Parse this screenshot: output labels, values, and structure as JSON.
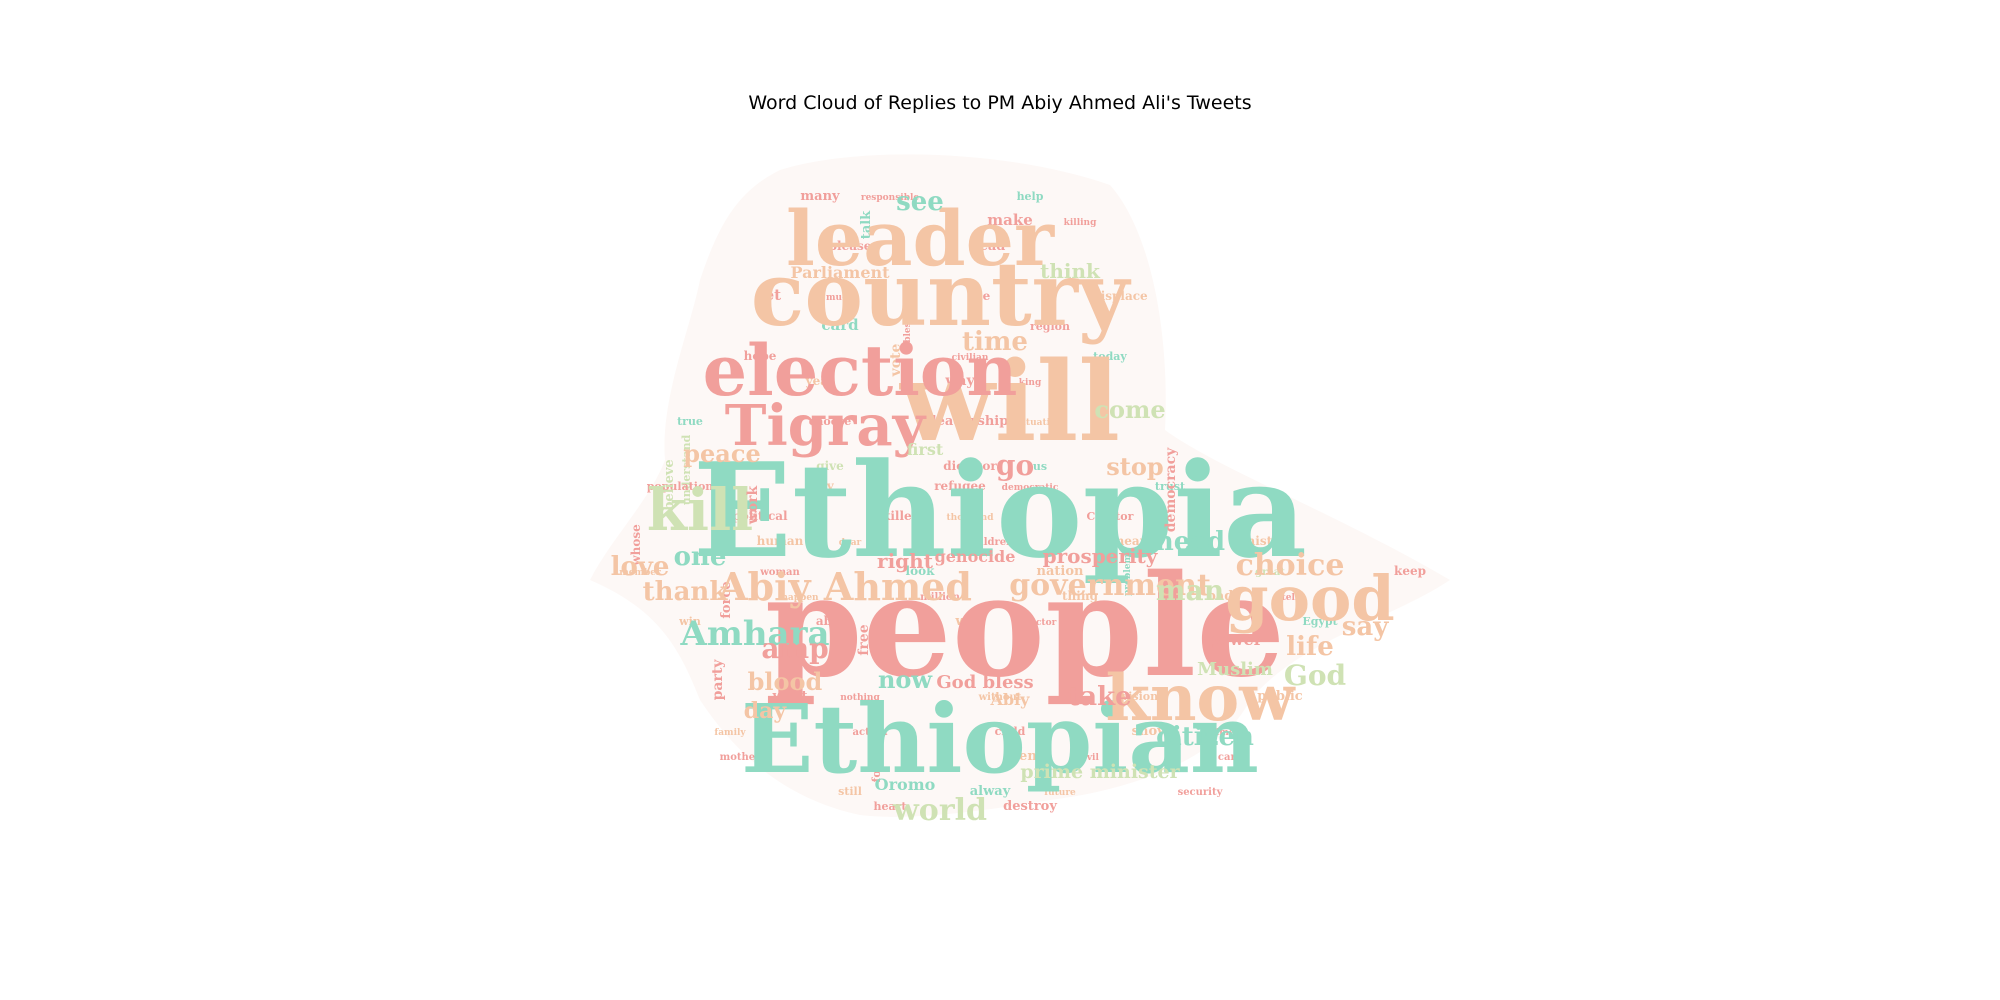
{
  "chart_data": {
    "type": "wordcloud",
    "title": "Word Cloud of Replies to PM Abiy Ahmed Ali's Tweets",
    "palette": {
      "mint": "#8fdac2",
      "peach": "#f4c5a5",
      "pink": "#f19f9b",
      "sage": "#cfe2b4",
      "shape_bg": "#fdf8f6"
    },
    "words": [
      {
        "text": "Ethiopia",
        "weight": 100,
        "color": "mint"
      },
      {
        "text": "people",
        "weight": 98,
        "color": "pink"
      },
      {
        "text": "Ethiopian",
        "weight": 78,
        "color": "mint"
      },
      {
        "text": "will",
        "weight": 72,
        "color": "peach"
      },
      {
        "text": "country",
        "weight": 68,
        "color": "peach"
      },
      {
        "text": "leader",
        "weight": 62,
        "color": "peach"
      },
      {
        "text": "election",
        "weight": 60,
        "color": "pink"
      },
      {
        "text": "know",
        "weight": 52,
        "color": "peach"
      },
      {
        "text": "good",
        "weight": 50,
        "color": "peach"
      },
      {
        "text": "Tigray",
        "weight": 46,
        "color": "pink"
      },
      {
        "text": "kill",
        "weight": 44,
        "color": "sage"
      },
      {
        "text": "Abiy Ahmed",
        "weight": 34,
        "color": "peach"
      },
      {
        "text": "Amhara",
        "weight": 30,
        "color": "mint"
      },
      {
        "text": "government",
        "weight": 26,
        "color": "peach"
      },
      {
        "text": "choice",
        "weight": 26,
        "color": "peach"
      },
      {
        "text": "world",
        "weight": 24,
        "color": "sage"
      },
      {
        "text": "citizen",
        "weight": 22,
        "color": "mint"
      },
      {
        "text": "God",
        "weight": 22,
        "color": "sage"
      },
      {
        "text": "need",
        "weight": 22,
        "color": "mint"
      },
      {
        "text": "man",
        "weight": 22,
        "color": "sage"
      },
      {
        "text": "time",
        "weight": 22,
        "color": "peach"
      },
      {
        "text": "peace",
        "weight": 20,
        "color": "peach"
      },
      {
        "text": "come",
        "weight": 20,
        "color": "sage"
      },
      {
        "text": "love",
        "weight": 20,
        "color": "peach"
      },
      {
        "text": "thank",
        "weight": 20,
        "color": "peach"
      },
      {
        "text": "one",
        "weight": 20,
        "color": "mint"
      },
      {
        "text": "blood",
        "weight": 20,
        "color": "peach"
      },
      {
        "text": "amp",
        "weight": 22,
        "color": "pink"
      },
      {
        "text": "take",
        "weight": 22,
        "color": "pink"
      },
      {
        "text": "life",
        "weight": 22,
        "color": "peach"
      },
      {
        "text": "say",
        "weight": 22,
        "color": "peach"
      },
      {
        "text": "stop",
        "weight": 20,
        "color": "peach"
      },
      {
        "text": "go",
        "weight": 22,
        "color": "pink"
      },
      {
        "text": "see",
        "weight": 22,
        "color": "mint"
      },
      {
        "text": "now",
        "weight": 20,
        "color": "mint"
      },
      {
        "text": "day",
        "weight": 18,
        "color": "peach"
      },
      {
        "text": "prosperity",
        "weight": 18,
        "color": "pink"
      },
      {
        "text": "right",
        "weight": 18,
        "color": "pink"
      },
      {
        "text": "prime minister",
        "weight": 17,
        "color": "sage"
      },
      {
        "text": "God bless",
        "weight": 16,
        "color": "pink"
      },
      {
        "text": "Muslim",
        "weight": 16,
        "color": "sage"
      },
      {
        "text": "think",
        "weight": 17,
        "color": "sage"
      },
      {
        "text": "genocide",
        "weight": 14,
        "color": "pink"
      },
      {
        "text": "Parliament",
        "weight": 14,
        "color": "peach"
      },
      {
        "text": "power",
        "weight": 14,
        "color": "pink"
      },
      {
        "text": "first",
        "weight": 14,
        "color": "sage"
      },
      {
        "text": "Oromo",
        "weight": 14,
        "color": "mint"
      },
      {
        "text": "many",
        "weight": 12,
        "color": "pink"
      },
      {
        "text": "make",
        "weight": 14,
        "color": "pink"
      },
      {
        "text": "let",
        "weight": 14,
        "color": "pink"
      },
      {
        "text": "card",
        "weight": 14,
        "color": "mint"
      },
      {
        "text": "vote",
        "weight": 13,
        "color": "peach"
      },
      {
        "text": "way",
        "weight": 13,
        "color": "pink"
      },
      {
        "text": "leadership",
        "weight": 12,
        "color": "pink"
      },
      {
        "text": "democracy",
        "weight": 12,
        "color": "pink"
      },
      {
        "text": "dictator",
        "weight": 11,
        "color": "pink"
      },
      {
        "text": "refugee",
        "weight": 11,
        "color": "pink"
      },
      {
        "text": "killer",
        "weight": 11,
        "color": "pink"
      },
      {
        "text": "human",
        "weight": 11,
        "color": "peach"
      },
      {
        "text": "history",
        "weight": 11,
        "color": "peach"
      },
      {
        "text": "Abiy",
        "weight": 14,
        "color": "peach"
      },
      {
        "text": "nation",
        "weight": 12,
        "color": "peach"
      },
      {
        "text": "force",
        "weight": 12,
        "color": "pink"
      },
      {
        "text": "bad",
        "weight": 12,
        "color": "peach"
      },
      {
        "text": "well",
        "weight": 12,
        "color": "peach"
      },
      {
        "text": "want",
        "weight": 12,
        "color": "pink"
      },
      {
        "text": "public",
        "weight": 12,
        "color": "peach"
      },
      {
        "text": "show",
        "weight": 12,
        "color": "peach"
      },
      {
        "text": "even",
        "weight": 12,
        "color": "peach"
      },
      {
        "text": "alway",
        "weight": 12,
        "color": "mint"
      },
      {
        "text": "destroy",
        "weight": 12,
        "color": "pink"
      },
      {
        "text": "talk",
        "weight": 12,
        "color": "mint"
      },
      {
        "text": "lead",
        "weight": 12,
        "color": "pink"
      },
      {
        "text": "displace",
        "weight": 11,
        "color": "peach"
      },
      {
        "text": "hope",
        "weight": 11,
        "color": "pink"
      },
      {
        "text": "year",
        "weight": 11,
        "color": "peach"
      },
      {
        "text": "choose",
        "weight": 10,
        "color": "pink"
      },
      {
        "text": "give",
        "weight": 11,
        "color": "sage"
      },
      {
        "text": "may",
        "weight": 11,
        "color": "peach"
      },
      {
        "text": "political",
        "weight": 11,
        "color": "pink"
      },
      {
        "text": "whose",
        "weight": 11,
        "color": "pink"
      },
      {
        "text": "mean",
        "weight": 11,
        "color": "peach"
      },
      {
        "text": "look",
        "weight": 11,
        "color": "mint"
      },
      {
        "text": "work",
        "weight": 11,
        "color": "pink"
      },
      {
        "text": "keep",
        "weight": 11,
        "color": "pink"
      },
      {
        "text": "thing",
        "weight": 11,
        "color": "peach"
      },
      {
        "text": "able",
        "weight": 11,
        "color": "pink"
      },
      {
        "text": "Egypt",
        "weight": 10,
        "color": "mint"
      },
      {
        "text": "party",
        "weight": 11,
        "color": "pink"
      },
      {
        "text": "vision",
        "weight": 10,
        "color": "peach"
      },
      {
        "text": "child",
        "weight": 10,
        "color": "pink"
      },
      {
        "text": "foreign",
        "weight": 10,
        "color": "pink"
      },
      {
        "text": "still",
        "weight": 10,
        "color": "peach"
      },
      {
        "text": "heart",
        "weight": 10,
        "color": "pink"
      },
      {
        "text": "help",
        "weight": 10,
        "color": "mint"
      },
      {
        "text": "please",
        "weight": 11,
        "color": "pink"
      },
      {
        "text": "die",
        "weight": 11,
        "color": "pink"
      },
      {
        "text": "region",
        "weight": 10,
        "color": "pink"
      },
      {
        "text": "today",
        "weight": 10,
        "color": "mint"
      },
      {
        "text": "true",
        "weight": 10,
        "color": "mint"
      },
      {
        "text": "understand",
        "weight": 10,
        "color": "sage"
      },
      {
        "text": "population",
        "weight": 10,
        "color": "pink"
      },
      {
        "text": "trust",
        "weight": 10,
        "color": "mint"
      },
      {
        "text": "Creator",
        "weight": 10,
        "color": "pink"
      },
      {
        "text": "children",
        "weight": 9,
        "color": "pink"
      },
      {
        "text": "woman",
        "weight": 9,
        "color": "pink"
      },
      {
        "text": "great",
        "weight": 9,
        "color": "sage"
      },
      {
        "text": "million",
        "weight": 9,
        "color": "pink"
      },
      {
        "text": "win",
        "weight": 10,
        "color": "peach"
      },
      {
        "text": "father",
        "weight": 9,
        "color": "mint"
      },
      {
        "text": "believe",
        "weight": 10,
        "color": "sage"
      },
      {
        "text": "without",
        "weight": 9,
        "color": "peach"
      },
      {
        "text": "action",
        "weight": 9,
        "color": "pink"
      },
      {
        "text": "mother",
        "weight": 9,
        "color": "pink"
      },
      {
        "text": "care",
        "weight": 9,
        "color": "pink"
      },
      {
        "text": "security",
        "weight": 9,
        "color": "pink"
      },
      {
        "text": "responsible",
        "weight": 8,
        "color": "pink"
      },
      {
        "text": "killing",
        "weight": 8,
        "color": "pink"
      },
      {
        "text": "much",
        "weight": 8,
        "color": "pink"
      },
      {
        "text": "bless",
        "weight": 8,
        "color": "pink"
      },
      {
        "text": "civilian",
        "weight": 8,
        "color": "pink"
      },
      {
        "text": "king",
        "weight": 8,
        "color": "pink"
      },
      {
        "text": "situation",
        "weight": 8,
        "color": "peach"
      },
      {
        "text": "us",
        "weight": 10,
        "color": "mint"
      },
      {
        "text": "democratic",
        "weight": 8,
        "color": "pink"
      },
      {
        "text": "thousand",
        "weight": 8,
        "color": "peach"
      },
      {
        "text": "dear",
        "weight": 8,
        "color": "peach"
      },
      {
        "text": "member",
        "weight": 8,
        "color": "peach"
      },
      {
        "text": "problem",
        "weight": 8,
        "color": "mint"
      },
      {
        "text": "happen",
        "weight": 8,
        "color": "peach"
      },
      {
        "text": "tell",
        "weight": 8,
        "color": "pink"
      },
      {
        "text": "doctor",
        "weight": 8,
        "color": "pink"
      },
      {
        "text": "nothing",
        "weight": 8,
        "color": "pink"
      },
      {
        "text": "family",
        "weight": 8,
        "color": "peach"
      },
      {
        "text": "crime",
        "weight": 8,
        "color": "pink"
      },
      {
        "text": "evil",
        "weight": 8,
        "color": "pink"
      },
      {
        "text": "future",
        "weight": 8,
        "color": "peach"
      },
      {
        "text": "free",
        "weight": 10,
        "color": "pink"
      }
    ]
  }
}
